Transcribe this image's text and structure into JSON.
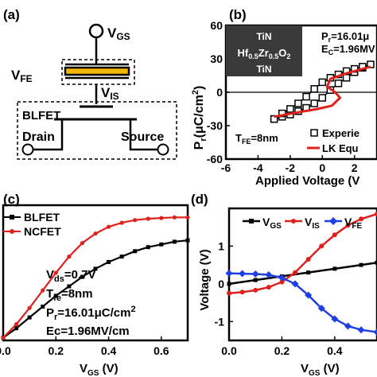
{
  "panel_a": {
    "label": "(a)",
    "vgs_main": "V",
    "vgs_sub": "GS",
    "vfe_main": "V",
    "vfe_sub": "FE",
    "vis_main": "V",
    "vis_sub": "IS",
    "device": "BLFET",
    "drain": "Drain",
    "source": "Source",
    "colors": {
      "ferroelectric": "#f5b800"
    }
  },
  "panel_b": {
    "label": "(b)",
    "ylabel_parts": [
      "P",
      "r",
      "(μC/cm",
      "2",
      ")"
    ],
    "xlabel": "Applied Voltage (V",
    "yticks": [
      "60",
      "30",
      "0",
      "-30",
      "-60"
    ],
    "xticks": [
      "-6",
      "-4",
      "-2",
      "0",
      "2"
    ],
    "inset": {
      "top": "TiN",
      "mid_parts": [
        "Hf",
        "0.5",
        "Zr",
        "0.5",
        "O",
        "2"
      ],
      "bottom": "TiN"
    },
    "pr_parts": [
      "P",
      "r",
      "=16.01μ"
    ],
    "ec_parts": [
      "E",
      "C",
      "=1.96MV"
    ],
    "tfe_parts": [
      "T",
      "FE",
      "=8nm"
    ],
    "legend": [
      "Experie",
      "LK Equ"
    ],
    "colors": {
      "experiment": "#000000",
      "lk": "#e0201b",
      "inset_bg": "#3a3a3a"
    }
  },
  "panel_c": {
    "label": "(c)",
    "legend": [
      "BLFET",
      "NCFET"
    ],
    "xlabel_parts": [
      "V",
      "GS",
      " (V)"
    ],
    "xticks": [
      "0.0",
      "0.2",
      "0.4",
      "0.6"
    ],
    "notes": {
      "vds": [
        "V",
        "ds",
        "=0.7V"
      ],
      "tfe": [
        "T",
        "fe",
        "=8nm"
      ],
      "pr": [
        "P",
        "r",
        "=16.01μC/cm",
        "2"
      ],
      "ec": "Ec=1.96MV/cm"
    },
    "colors": {
      "blfet": "#000000",
      "ncfet": "#e0201b"
    }
  },
  "panel_d": {
    "label": "(d)",
    "ylabel": "Voltage (V)",
    "xlabel_parts": [
      "V",
      "GS",
      " (V)"
    ],
    "yticks": [
      "1",
      "0",
      "-1"
    ],
    "xticks": [
      "0.0",
      "0.2",
      "0.4"
    ],
    "legend": [
      {
        "main": "V",
        "sub": "GS",
        "color": "#000000"
      },
      {
        "main": "V",
        "sub": "IS",
        "color": "#e0201b"
      },
      {
        "main": "V",
        "sub": "FE",
        "color": "#1f3fe0"
      }
    ]
  },
  "chart_data": [
    {
      "type": "line",
      "panel": "b",
      "xlabel": "Applied Voltage (V",
      "ylabel": "Pr(μC/cm2)",
      "xlim": [
        -6,
        3.4
      ],
      "ylim": [
        -60,
        60
      ],
      "series": [
        {
          "name": "Experie",
          "marker": "square",
          "x": [
            -3,
            -2.5,
            -2,
            -1.5,
            -1,
            -0.5,
            0,
            0.5,
            1,
            1.5,
            2,
            2.5,
            3,
            2.5,
            2,
            1.5,
            1,
            0.5,
            0,
            -0.5,
            -1,
            -1.5,
            -2,
            -2.5,
            -3
          ],
          "y": [
            -24,
            -22,
            -20,
            -17,
            -14,
            -10,
            -5,
            2,
            8,
            13,
            18,
            22,
            25,
            23,
            21,
            19,
            16,
            13,
            9,
            3,
            -4,
            -10,
            -15,
            -19,
            -24
          ]
        },
        {
          "name": "LK Equ",
          "x": [
            -3,
            -1.5,
            -0.3,
            0.6,
            1.1,
            0.8,
            0.3,
            0.5,
            1.5,
            3
          ],
          "y": [
            -22,
            -18,
            -15,
            -12,
            -5,
            0,
            5,
            12,
            17,
            23
          ]
        }
      ]
    },
    {
      "type": "line",
      "panel": "c",
      "xlabel": "VGS (V)",
      "xlim": [
        0,
        0.7
      ],
      "series": [
        {
          "name": "BLFET",
          "x": [
            0,
            0.05,
            0.1,
            0.15,
            0.2,
            0.25,
            0.3,
            0.35,
            0.4,
            0.45,
            0.5,
            0.55,
            0.6,
            0.65,
            0.7
          ],
          "y": [
            0.02,
            0.09,
            0.17,
            0.25,
            0.33,
            0.4,
            0.47,
            0.53,
            0.58,
            0.62,
            0.66,
            0.69,
            0.71,
            0.73,
            0.74
          ]
        },
        {
          "name": "NCFET",
          "x": [
            0,
            0.05,
            0.1,
            0.15,
            0.2,
            0.25,
            0.3,
            0.35,
            0.4,
            0.45,
            0.5,
            0.55,
            0.6,
            0.65,
            0.7
          ],
          "y": [
            0.02,
            0.12,
            0.24,
            0.37,
            0.5,
            0.62,
            0.72,
            0.79,
            0.84,
            0.87,
            0.89,
            0.9,
            0.905,
            0.91,
            0.91
          ]
        }
      ]
    },
    {
      "type": "line",
      "panel": "d",
      "xlabel": "VGS (V)",
      "ylabel": "Voltage (V)",
      "xlim": [
        0,
        0.56
      ],
      "ylim": [
        -1.5,
        2
      ],
      "series": [
        {
          "name": "VGS",
          "x": [
            0,
            0.1,
            0.2,
            0.3,
            0.4,
            0.5,
            0.56
          ],
          "y": [
            0.0,
            0.1,
            0.2,
            0.3,
            0.4,
            0.5,
            0.56
          ]
        },
        {
          "name": "VIS",
          "x": [
            0,
            0.05,
            0.1,
            0.15,
            0.2,
            0.25,
            0.3,
            0.35,
            0.4,
            0.45,
            0.5,
            0.56
          ],
          "y": [
            -0.25,
            -0.22,
            -0.17,
            -0.09,
            0.05,
            0.3,
            0.65,
            1.0,
            1.3,
            1.55,
            1.72,
            1.85
          ]
        },
        {
          "name": "VFE",
          "x": [
            0,
            0.05,
            0.1,
            0.15,
            0.2,
            0.25,
            0.3,
            0.35,
            0.4,
            0.45,
            0.5,
            0.56
          ],
          "y": [
            0.28,
            0.27,
            0.26,
            0.24,
            0.16,
            0.0,
            -0.3,
            -0.65,
            -0.93,
            -1.12,
            -1.22,
            -1.28
          ]
        }
      ]
    }
  ]
}
